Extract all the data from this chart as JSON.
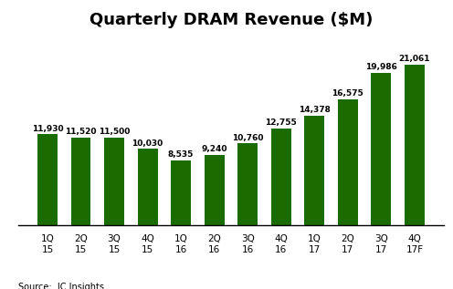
{
  "title": "Quarterly DRAM Revenue ($M)",
  "categories": [
    "1Q\n15",
    "2Q\n15",
    "3Q\n15",
    "4Q\n15",
    "1Q\n16",
    "2Q\n16",
    "3Q\n16",
    "4Q\n16",
    "1Q\n17",
    "2Q\n17",
    "3Q\n17",
    "4Q\n17F"
  ],
  "values": [
    11930,
    11520,
    11500,
    10030,
    8535,
    9240,
    10760,
    12755,
    14378,
    16575,
    19986,
    21061
  ],
  "bar_color": "#1a6b00",
  "background_color": "#ffffff",
  "source_text": "Source:  IC Insights",
  "title_fontsize": 13,
  "label_fontsize": 6.5,
  "tick_fontsize": 7.5,
  "source_fontsize": 7,
  "ylim": [
    0,
    25000
  ]
}
